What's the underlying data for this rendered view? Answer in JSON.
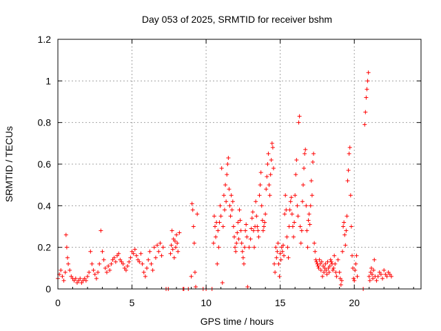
{
  "chart_data": {
    "type": "scatter",
    "title": "Day 053 of 2025, SRMTID for receiver bshm",
    "xlabel": "GPS time / hours",
    "ylabel": "SRMTID / TECUs",
    "xlim": [
      0,
      24.5
    ],
    "ylim": [
      0,
      1.2
    ],
    "x_ticks": [
      0,
      5,
      10,
      15,
      20
    ],
    "x_tick_labels": [
      "0",
      "5",
      "10",
      "15",
      "20"
    ],
    "y_ticks": [
      0,
      0.2,
      0.4,
      0.6,
      0.8,
      1.0,
      1.2
    ],
    "y_tick_labels": [
      "0",
      "0.2",
      "0.4",
      "0.6",
      "0.8",
      "1",
      "1.2"
    ],
    "grid": true,
    "marker": "plus",
    "color": "#ff0000",
    "series": [
      {
        "name": "SRMTID",
        "points": [
          [
            0.0,
            0.05
          ],
          [
            0.1,
            0.07
          ],
          [
            0.2,
            0.09
          ],
          [
            0.3,
            0.06
          ],
          [
            0.4,
            0.04
          ],
          [
            0.5,
            0.08
          ],
          [
            0.55,
            0.26
          ],
          [
            0.6,
            0.2
          ],
          [
            0.65,
            0.15
          ],
          [
            0.7,
            0.12
          ],
          [
            0.8,
            0.09
          ],
          [
            0.9,
            0.06
          ],
          [
            1.0,
            0.05
          ],
          [
            1.1,
            0.04
          ],
          [
            1.2,
            0.05
          ],
          [
            1.3,
            0.03
          ],
          [
            1.4,
            0.04
          ],
          [
            1.5,
            0.05
          ],
          [
            1.6,
            0.03
          ],
          [
            1.7,
            0.04
          ],
          [
            1.8,
            0.05
          ],
          [
            1.9,
            0.04
          ],
          [
            2.0,
            0.06
          ],
          [
            2.1,
            0.08
          ],
          [
            2.2,
            0.18
          ],
          [
            2.3,
            0.12
          ],
          [
            2.4,
            0.09
          ],
          [
            2.5,
            0.07
          ],
          [
            2.6,
            0.05
          ],
          [
            2.7,
            0.08
          ],
          [
            2.8,
            0.12
          ],
          [
            2.9,
            0.28
          ],
          [
            3.0,
            0.18
          ],
          [
            3.1,
            0.14
          ],
          [
            3.2,
            0.1
          ],
          [
            3.3,
            0.08
          ],
          [
            3.4,
            0.11
          ],
          [
            3.5,
            0.09
          ],
          [
            3.6,
            0.12
          ],
          [
            3.7,
            0.14
          ],
          [
            3.8,
            0.15
          ],
          [
            3.9,
            0.13
          ],
          [
            4.0,
            0.16
          ],
          [
            4.1,
            0.17
          ],
          [
            4.2,
            0.14
          ],
          [
            4.3,
            0.13
          ],
          [
            4.4,
            0.12
          ],
          [
            4.5,
            0.1
          ],
          [
            4.6,
            0.09
          ],
          [
            4.7,
            0.11
          ],
          [
            4.8,
            0.13
          ],
          [
            4.9,
            0.15
          ],
          [
            5.0,
            0.18
          ],
          [
            5.1,
            0.17
          ],
          [
            5.2,
            0.19
          ],
          [
            5.3,
            0.16
          ],
          [
            5.4,
            0.14
          ],
          [
            5.5,
            0.13
          ],
          [
            5.6,
            0.17
          ],
          [
            5.7,
            0.12
          ],
          [
            5.8,
            0.08
          ],
          [
            5.9,
            0.06
          ],
          [
            6.0,
            0.1
          ],
          [
            6.1,
            0.14
          ],
          [
            6.2,
            0.18
          ],
          [
            6.3,
            0.12
          ],
          [
            6.4,
            0.09
          ],
          [
            6.5,
            0.2
          ],
          [
            6.6,
            0.15
          ],
          [
            6.7,
            0.21
          ],
          [
            6.8,
            0.18
          ],
          [
            6.9,
            0.22
          ],
          [
            7.0,
            0.16
          ],
          [
            7.1,
            0.2
          ],
          [
            7.3,
            0.0
          ],
          [
            7.45,
            0.0
          ],
          [
            7.6,
            0.17
          ],
          [
            7.65,
            0.21
          ],
          [
            7.7,
            0.28
          ],
          [
            7.75,
            0.19
          ],
          [
            7.8,
            0.24
          ],
          [
            7.85,
            0.15
          ],
          [
            7.9,
            0.23
          ],
          [
            7.95,
            0.2
          ],
          [
            8.0,
            0.26
          ],
          [
            8.05,
            0.22
          ],
          [
            8.1,
            0.18
          ],
          [
            8.2,
            0.27
          ],
          [
            8.45,
            0.0
          ],
          [
            8.5,
            0.0
          ],
          [
            8.8,
            0.0
          ],
          [
            9.0,
            0.06
          ],
          [
            9.05,
            0.41
          ],
          [
            9.1,
            0.38
          ],
          [
            9.15,
            0.3
          ],
          [
            9.2,
            0.22
          ],
          [
            9.25,
            0.08
          ],
          [
            9.3,
            0.01
          ],
          [
            9.4,
            0.36
          ],
          [
            9.8,
            0.0
          ],
          [
            10.0,
            0.0
          ],
          [
            10.4,
            0.0
          ],
          [
            10.5,
            0.22
          ],
          [
            10.55,
            0.35
          ],
          [
            10.6,
            0.3
          ],
          [
            10.65,
            0.25
          ],
          [
            10.7,
            0.32
          ],
          [
            10.75,
            0.12
          ],
          [
            10.8,
            0.28
          ],
          [
            10.85,
            0.2
          ],
          [
            10.9,
            0.32
          ],
          [
            10.95,
            0.4
          ],
          [
            11.0,
            0.35
          ],
          [
            11.05,
            0.58
          ],
          [
            11.1,
            0.03
          ],
          [
            11.15,
            0.3
          ],
          [
            11.2,
            0.45
          ],
          [
            11.25,
            0.38
          ],
          [
            11.3,
            0.5
          ],
          [
            11.35,
            0.42
          ],
          [
            11.4,
            0.55
          ],
          [
            11.45,
            0.6
          ],
          [
            11.5,
            0.63
          ],
          [
            11.55,
            0.48
          ],
          [
            11.6,
            0.4
          ],
          [
            11.65,
            0.35
          ],
          [
            11.7,
            0.45
          ],
          [
            11.75,
            0.38
          ],
          [
            11.8,
            0.42
          ],
          [
            11.85,
            0.3
          ],
          [
            11.9,
            0.25
          ],
          [
            11.95,
            0.2
          ],
          [
            12.0,
            0.18
          ],
          [
            12.05,
            0.22
          ],
          [
            12.1,
            0.27
          ],
          [
            12.15,
            0.32
          ],
          [
            12.2,
            0.24
          ],
          [
            12.25,
            0.38
          ],
          [
            12.3,
            0.33
          ],
          [
            12.35,
            0.28
          ],
          [
            12.4,
            0.22
          ],
          [
            12.45,
            0.18
          ],
          [
            12.5,
            0.15
          ],
          [
            12.55,
            0.12
          ],
          [
            12.6,
            0.2
          ],
          [
            12.65,
            0.28
          ],
          [
            12.7,
            0.31
          ],
          [
            12.75,
            0.25
          ],
          [
            12.8,
            0.01
          ],
          [
            12.9,
            0.2
          ],
          [
            13.0,
            0.24
          ],
          [
            13.05,
            0.29
          ],
          [
            13.1,
            0.34
          ],
          [
            13.15,
            0.37
          ],
          [
            13.2,
            0.28
          ],
          [
            13.25,
            0.2
          ],
          [
            13.3,
            0.3
          ],
          [
            13.35,
            0.42
          ],
          [
            13.4,
            0.35
          ],
          [
            13.45,
            0.3
          ],
          [
            13.5,
            0.28
          ],
          [
            13.55,
            0.25
          ],
          [
            13.6,
            0.45
          ],
          [
            13.65,
            0.5
          ],
          [
            13.7,
            0.56
          ],
          [
            13.75,
            0.4
          ],
          [
            13.8,
            0.33
          ],
          [
            13.85,
            0.28
          ],
          [
            13.9,
            0.3
          ],
          [
            13.95,
            0.32
          ],
          [
            14.0,
            0.36
          ],
          [
            14.05,
            0.48
          ],
          [
            14.1,
            0.54
          ],
          [
            14.15,
            0.6
          ],
          [
            14.2,
            0.65
          ],
          [
            14.25,
            0.5
          ],
          [
            14.3,
            0.45
          ],
          [
            14.35,
            0.55
          ],
          [
            14.4,
            0.62
          ],
          [
            14.45,
            0.7
          ],
          [
            14.5,
            0.68
          ],
          [
            14.55,
            0.58
          ],
          [
            14.6,
            0.12
          ],
          [
            14.65,
            0.08
          ],
          [
            14.7,
            0.2
          ],
          [
            14.75,
            0.15
          ],
          [
            14.8,
            0.18
          ],
          [
            14.85,
            0.22
          ],
          [
            14.9,
            0.12
          ],
          [
            14.95,
            0.06
          ],
          [
            15.0,
            0.17
          ],
          [
            15.05,
            0.14
          ],
          [
            15.1,
            0.2
          ],
          [
            15.15,
            0.18
          ],
          [
            15.2,
            0.21
          ],
          [
            15.25,
            0.16
          ],
          [
            15.3,
            0.36
          ],
          [
            15.35,
            0.45
          ],
          [
            15.4,
            0.38
          ],
          [
            15.45,
            0.25
          ],
          [
            15.5,
            0.2
          ],
          [
            15.55,
            0.15
          ],
          [
            15.6,
            0.3
          ],
          [
            15.65,
            0.38
          ],
          [
            15.7,
            0.42
          ],
          [
            15.75,
            0.44
          ],
          [
            15.8,
            0.36
          ],
          [
            15.85,
            0.3
          ],
          [
            15.9,
            0.25
          ],
          [
            15.95,
            0.32
          ],
          [
            16.0,
            0.45
          ],
          [
            16.05,
            0.55
          ],
          [
            16.1,
            0.62
          ],
          [
            16.15,
            0.4
          ],
          [
            16.2,
            0.35
          ],
          [
            16.25,
            0.8
          ],
          [
            16.3,
            0.83
          ],
          [
            16.35,
            0.3
          ],
          [
            16.4,
            0.22
          ],
          [
            16.45,
            0.28
          ],
          [
            16.5,
            0.42
          ],
          [
            16.55,
            0.5
          ],
          [
            16.6,
            0.58
          ],
          [
            16.65,
            0.65
          ],
          [
            16.7,
            0.67
          ],
          [
            16.75,
            0.4
          ],
          [
            16.8,
            0.28
          ],
          [
            16.85,
            0.2
          ],
          [
            16.9,
            0.33
          ],
          [
            16.95,
            0.36
          ],
          [
            17.0,
            0.31
          ],
          [
            17.05,
            0.4
          ],
          [
            17.1,
            0.52
          ],
          [
            17.15,
            0.45
          ],
          [
            17.2,
            0.61
          ],
          [
            17.25,
            0.65
          ],
          [
            17.3,
            0.22
          ],
          [
            17.35,
            0.18
          ],
          [
            17.4,
            0.14
          ],
          [
            17.45,
            0.13
          ],
          [
            17.5,
            0.12
          ],
          [
            17.55,
            0.11
          ],
          [
            17.6,
            0.1
          ],
          [
            17.65,
            0.14
          ],
          [
            17.7,
            0.12
          ],
          [
            17.75,
            0.09
          ],
          [
            17.8,
            0.13
          ],
          [
            17.85,
            0.06
          ],
          [
            17.9,
            0.11
          ],
          [
            17.95,
            0.08
          ],
          [
            18.0,
            0.1
          ],
          [
            18.05,
            0.12
          ],
          [
            18.1,
            0.09
          ],
          [
            18.15,
            0.07
          ],
          [
            18.2,
            0.13
          ],
          [
            18.25,
            0.1
          ],
          [
            18.3,
            0.08
          ],
          [
            18.35,
            0.11
          ],
          [
            18.4,
            0.14
          ],
          [
            18.45,
            0.13
          ],
          [
            18.5,
            0.12
          ],
          [
            18.55,
            0.09
          ],
          [
            18.6,
            0.1
          ],
          [
            18.65,
            0.16
          ],
          [
            18.7,
            0.12
          ],
          [
            18.75,
            0.08
          ],
          [
            18.8,
            0.06
          ],
          [
            18.9,
            0.14
          ],
          [
            19.0,
            0.08
          ],
          [
            19.05,
            0.05
          ],
          [
            19.1,
            0.02
          ],
          [
            19.15,
            0.04
          ],
          [
            19.2,
            0.18
          ],
          [
            19.25,
            0.3
          ],
          [
            19.3,
            0.32
          ],
          [
            19.35,
            0.26
          ],
          [
            19.4,
            0.21
          ],
          [
            19.45,
            0.28
          ],
          [
            19.5,
            0.35
          ],
          [
            19.55,
            0.52
          ],
          [
            19.6,
            0.57
          ],
          [
            19.65,
            0.65
          ],
          [
            19.7,
            0.68
          ],
          [
            19.75,
            0.45
          ],
          [
            19.8,
            0.3
          ],
          [
            19.85,
            0.16
          ],
          [
            19.9,
            0.1
          ],
          [
            19.95,
            0.05
          ],
          [
            20.0,
            0.04
          ],
          [
            20.05,
            0.09
          ],
          [
            20.1,
            0.12
          ],
          [
            20.15,
            0.16
          ],
          [
            20.2,
            0.06
          ],
          [
            20.6,
            0.0
          ],
          [
            20.7,
            0.79
          ],
          [
            20.75,
            0.85
          ],
          [
            20.8,
            0.92
          ],
          [
            20.85,
            0.96
          ],
          [
            20.9,
            1.0
          ],
          [
            20.95,
            1.04
          ],
          [
            21.0,
            0.06
          ],
          [
            21.05,
            0.04
          ],
          [
            21.1,
            0.08
          ],
          [
            21.15,
            0.1
          ],
          [
            21.2,
            0.07
          ],
          [
            21.25,
            0.05
          ],
          [
            21.3,
            0.09
          ],
          [
            21.35,
            0.14
          ],
          [
            21.4,
            0.06
          ],
          [
            21.5,
            0.04
          ],
          [
            21.6,
            0.06
          ],
          [
            21.7,
            0.08
          ],
          [
            21.8,
            0.07
          ],
          [
            21.9,
            0.05
          ],
          [
            22.0,
            0.09
          ],
          [
            22.1,
            0.07
          ],
          [
            22.2,
            0.06
          ],
          [
            22.3,
            0.08
          ],
          [
            22.4,
            0.07
          ],
          [
            22.5,
            0.06
          ]
        ]
      }
    ]
  }
}
